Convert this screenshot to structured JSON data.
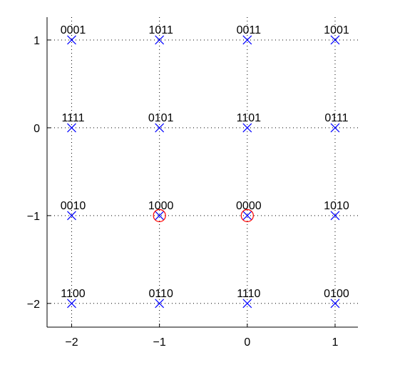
{
  "chart_data": {
    "type": "scatter",
    "x": [
      -2,
      -1,
      0,
      1,
      -2,
      -1,
      0,
      1,
      -2,
      -1,
      0,
      1,
      -2,
      -1,
      0,
      1
    ],
    "y": [
      1,
      1,
      1,
      1,
      0,
      0,
      0,
      0,
      -1,
      -1,
      -1,
      -1,
      -2,
      -2,
      -2,
      -2
    ],
    "point_labels": [
      "0001",
      "1011",
      "0011",
      "1001",
      "1111",
      "0101",
      "1101",
      "0111",
      "0010",
      "1000",
      "0000",
      "1010",
      "1100",
      "0110",
      "1110",
      "0100"
    ],
    "color": "#0000ff",
    "highlight": {
      "x": [
        -1,
        0
      ],
      "y": [
        -1,
        -1
      ],
      "color": "#ff0000"
    },
    "xlim": [
      -2.28,
      1.26
    ],
    "ylim": [
      -2.27,
      1.26
    ],
    "xticks": [
      {
        "value": -2,
        "label": "−2"
      },
      {
        "value": -1,
        "label": "−1"
      },
      0,
      1
    ],
    "yticks": [
      {
        "value": -2,
        "label": "−2"
      },
      {
        "value": -1,
        "label": "−1"
      },
      0,
      1
    ],
    "grid": true
  }
}
